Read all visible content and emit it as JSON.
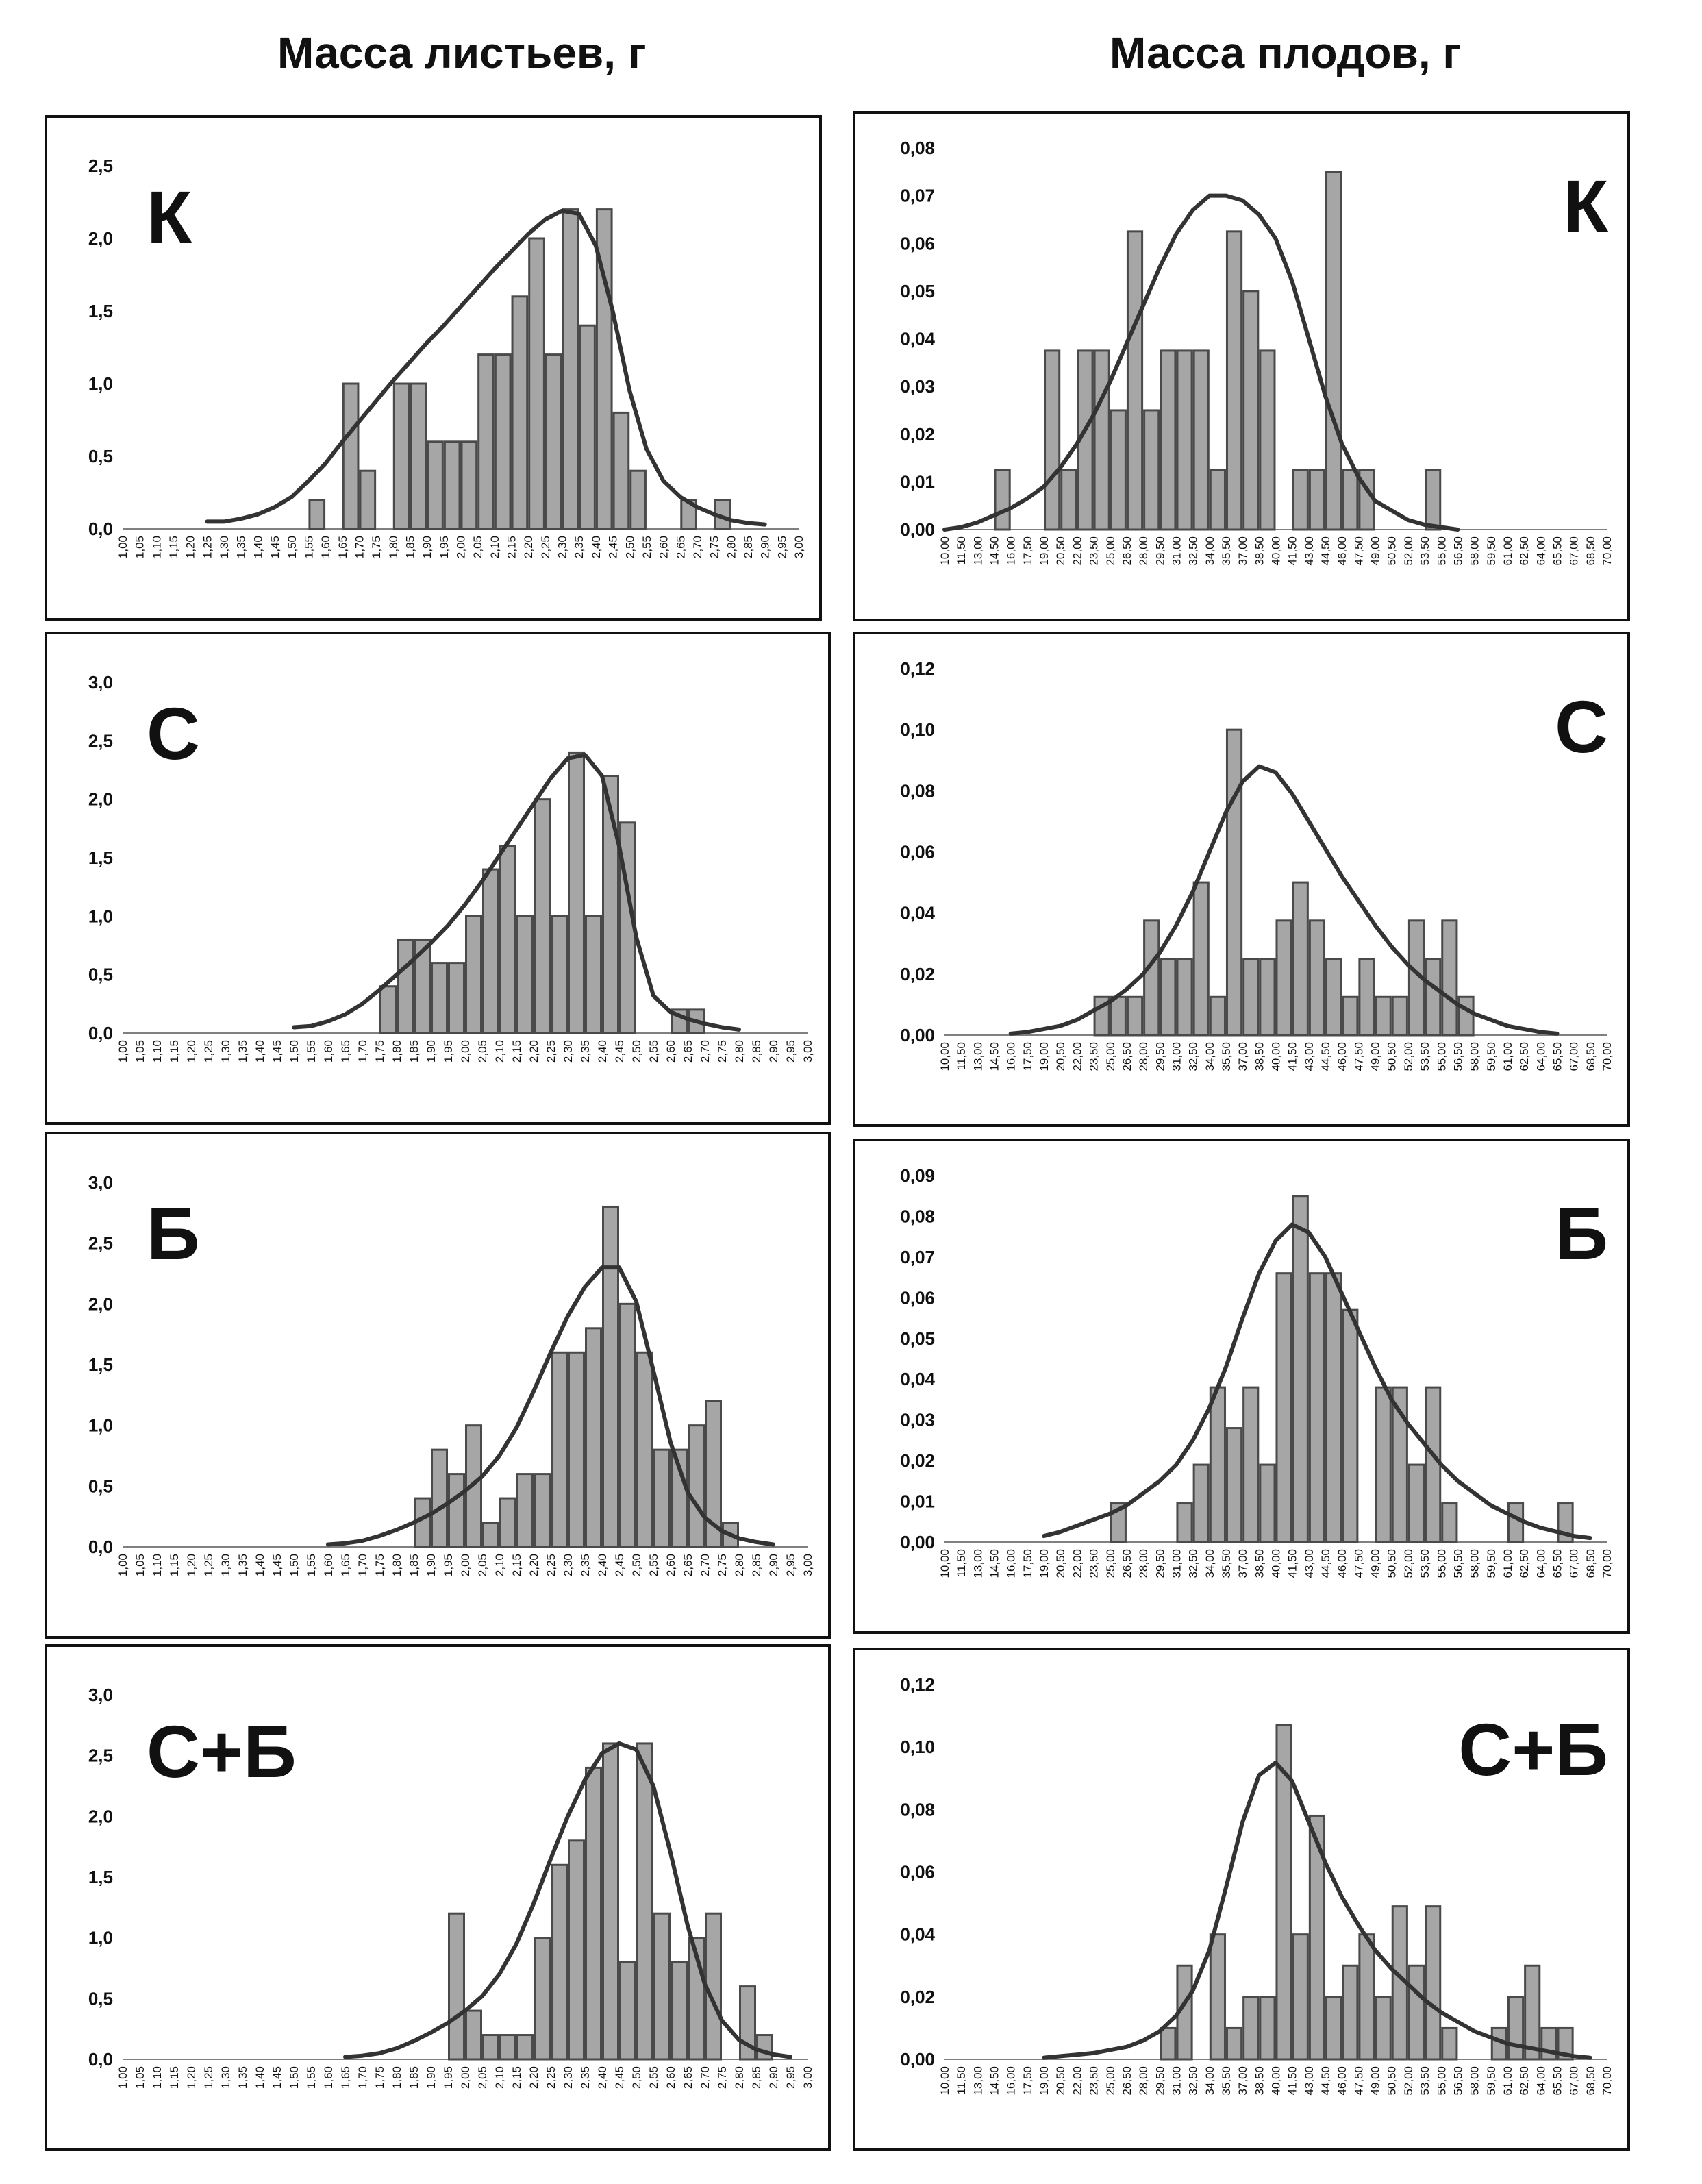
{
  "column_titles": {
    "left": "Масса листьев, г",
    "right": "Масса плодов, г"
  },
  "colors": {
    "bar_fill": "#a6a6a6",
    "bar_stroke": "#4a4a4a",
    "curve": "#333333",
    "axis": "#808080",
    "text": "#111111"
  },
  "chart_data": [
    {
      "id": "leaf-k",
      "type": "bar",
      "label": "К",
      "xticks": [
        "1,00",
        "1,05",
        "1,10",
        "1,15",
        "1,20",
        "1,25",
        "1,30",
        "1,35",
        "1,40",
        "1,45",
        "1,50",
        "1,55",
        "1,60",
        "1,65",
        "1,70",
        "1,75",
        "1,80",
        "1,85",
        "1,90",
        "1,95",
        "2,00",
        "2,05",
        "2,10",
        "2,15",
        "2,20",
        "2,25",
        "2,30",
        "2,35",
        "2,40",
        "2,45",
        "2,50",
        "2,55",
        "2,60",
        "2,65",
        "2,70",
        "2,75",
        "2,80",
        "2,85",
        "2,90",
        "2,95",
        "3,00"
      ],
      "yticks": [
        "0,0",
        "0,5",
        "1,0",
        "1,5",
        "2,0",
        "2,5"
      ],
      "ylim": [
        0,
        2.5
      ],
      "values": [
        0,
        0,
        0,
        0,
        0,
        0,
        0,
        0,
        0,
        0,
        0,
        0.2,
        0,
        1.0,
        0.4,
        0,
        1.0,
        1.0,
        0.6,
        0.6,
        0.6,
        1.2,
        1.2,
        1.6,
        2.0,
        1.2,
        2.2,
        1.4,
        2.2,
        0.8,
        0.4,
        0,
        0,
        0.2,
        0,
        0.2,
        0,
        0,
        0,
        0
      ],
      "curve_x": [
        1.25,
        1.3,
        1.35,
        1.4,
        1.45,
        1.5,
        1.55,
        1.6,
        1.65,
        1.7,
        1.75,
        1.8,
        1.85,
        1.9,
        1.95,
        2.0,
        2.05,
        2.1,
        2.15,
        2.2,
        2.25,
        2.3,
        2.35,
        2.4,
        2.45,
        2.5,
        2.55,
        2.6,
        2.65,
        2.7,
        2.75,
        2.8,
        2.85,
        2.9
      ],
      "curve_y": [
        0.05,
        0.05,
        0.07,
        0.1,
        0.15,
        0.22,
        0.33,
        0.45,
        0.6,
        0.74,
        0.88,
        1.02,
        1.15,
        1.28,
        1.4,
        1.53,
        1.66,
        1.79,
        1.91,
        2.03,
        2.13,
        2.19,
        2.17,
        1.95,
        1.5,
        0.95,
        0.55,
        0.33,
        0.22,
        0.15,
        0.1,
        0.06,
        0.04,
        0.03
      ]
    },
    {
      "id": "leaf-c",
      "type": "bar",
      "label": "С",
      "xticks": [
        "1,00",
        "1,05",
        "1,10",
        "1,15",
        "1,20",
        "1,25",
        "1,30",
        "1,35",
        "1,40",
        "1,45",
        "1,50",
        "1,55",
        "1,60",
        "1,65",
        "1,70",
        "1,75",
        "1,80",
        "1,85",
        "1,90",
        "1,95",
        "2,00",
        "2,05",
        "2,10",
        "2,15",
        "2,20",
        "2,25",
        "2,30",
        "2,35",
        "2,40",
        "2,45",
        "2,50",
        "2,55",
        "2,60",
        "2,65",
        "2,70",
        "2,75",
        "2,80",
        "2,85",
        "2,90",
        "2,95",
        "3,00"
      ],
      "yticks": [
        "0,0",
        "0,5",
        "1,0",
        "1,5",
        "2,0",
        "2,5",
        "3,0"
      ],
      "ylim": [
        0,
        3.0
      ],
      "values": [
        0,
        0,
        0,
        0,
        0,
        0,
        0,
        0,
        0,
        0,
        0,
        0,
        0,
        0,
        0,
        0.4,
        0.8,
        0.8,
        0.6,
        0.6,
        1.0,
        1.4,
        1.6,
        1.0,
        2.0,
        1.0,
        2.4,
        1.0,
        2.2,
        1.8,
        0,
        0,
        0.2,
        0.2,
        0,
        0,
        0,
        0,
        0,
        0
      ],
      "curve_x": [
        1.5,
        1.55,
        1.6,
        1.65,
        1.7,
        1.75,
        1.8,
        1.85,
        1.9,
        1.95,
        2.0,
        2.05,
        2.1,
        2.15,
        2.2,
        2.25,
        2.3,
        2.35,
        2.4,
        2.45,
        2.5,
        2.55,
        2.6,
        2.65,
        2.7,
        2.75,
        2.8
      ],
      "curve_y": [
        0.05,
        0.06,
        0.1,
        0.16,
        0.25,
        0.37,
        0.5,
        0.63,
        0.77,
        0.92,
        1.1,
        1.3,
        1.52,
        1.74,
        1.96,
        2.18,
        2.35,
        2.38,
        2.2,
        1.6,
        0.82,
        0.32,
        0.18,
        0.12,
        0.08,
        0.05,
        0.03
      ]
    },
    {
      "id": "leaf-b",
      "type": "bar",
      "label": "Б",
      "xticks": [
        "1,00",
        "1,05",
        "1,10",
        "1,15",
        "1,20",
        "1,25",
        "1,30",
        "1,35",
        "1,40",
        "1,45",
        "1,50",
        "1,55",
        "1,60",
        "1,65",
        "1,70",
        "1,75",
        "1,80",
        "1,85",
        "1,90",
        "1,95",
        "2,00",
        "2,05",
        "2,10",
        "2,15",
        "2,20",
        "2,25",
        "2,30",
        "2,35",
        "2,40",
        "2,45",
        "2,50",
        "2,55",
        "2,60",
        "2,65",
        "2,70",
        "2,75",
        "2,80",
        "2,85",
        "2,90",
        "2,95",
        "3,00"
      ],
      "yticks": [
        "0,0",
        "0,5",
        "1,0",
        "1,5",
        "2,0",
        "2,5",
        "3,0"
      ],
      "ylim": [
        0,
        3.0
      ],
      "values": [
        0,
        0,
        0,
        0,
        0,
        0,
        0,
        0,
        0,
        0,
        0,
        0,
        0,
        0,
        0,
        0,
        0,
        0.4,
        0.8,
        0.6,
        1.0,
        0.2,
        0.4,
        0.6,
        0.6,
        1.6,
        1.6,
        1.8,
        2.8,
        2.0,
        1.6,
        0.8,
        0.8,
        1.0,
        1.2,
        0.2,
        0,
        0,
        0,
        0
      ],
      "curve_x": [
        1.6,
        1.65,
        1.7,
        1.75,
        1.8,
        1.85,
        1.9,
        1.95,
        2.0,
        2.05,
        2.1,
        2.15,
        2.2,
        2.25,
        2.3,
        2.35,
        2.4,
        2.45,
        2.5,
        2.55,
        2.6,
        2.65,
        2.7,
        2.75,
        2.8,
        2.85,
        2.9
      ],
      "curve_y": [
        0.02,
        0.03,
        0.05,
        0.09,
        0.14,
        0.2,
        0.27,
        0.36,
        0.46,
        0.58,
        0.75,
        0.98,
        1.28,
        1.6,
        1.9,
        2.14,
        2.3,
        2.3,
        2.02,
        1.45,
        0.86,
        0.45,
        0.24,
        0.13,
        0.07,
        0.04,
        0.02
      ]
    },
    {
      "id": "leaf-cb",
      "type": "bar",
      "label": "С+Б",
      "xticks": [
        "1,00",
        "1,05",
        "1,10",
        "1,15",
        "1,20",
        "1,25",
        "1,30",
        "1,35",
        "1,40",
        "1,45",
        "1,50",
        "1,55",
        "1,60",
        "1,65",
        "1,70",
        "1,75",
        "1,80",
        "1,85",
        "1,90",
        "1,95",
        "2,00",
        "2,05",
        "2,10",
        "2,15",
        "2,20",
        "2,25",
        "2,30",
        "2,35",
        "2,40",
        "2,45",
        "2,50",
        "2,55",
        "2,60",
        "2,65",
        "2,70",
        "2,75",
        "2,80",
        "2,85",
        "2,90",
        "2,95",
        "3,00"
      ],
      "yticks": [
        "0,0",
        "0,5",
        "1,0",
        "1,5",
        "2,0",
        "2,5",
        "3,0"
      ],
      "ylim": [
        0,
        3.0
      ],
      "values": [
        0,
        0,
        0,
        0,
        0,
        0,
        0,
        0,
        0,
        0,
        0,
        0,
        0,
        0,
        0,
        0,
        0,
        0,
        0,
        1.2,
        0.4,
        0.2,
        0.2,
        0.2,
        1.0,
        1.6,
        1.8,
        2.4,
        2.6,
        0.8,
        2.6,
        1.2,
        0.8,
        1.0,
        1.2,
        0,
        0.6,
        0.2,
        0,
        0
      ],
      "curve_x": [
        1.65,
        1.7,
        1.75,
        1.8,
        1.85,
        1.9,
        1.95,
        2.0,
        2.05,
        2.1,
        2.15,
        2.2,
        2.25,
        2.3,
        2.35,
        2.4,
        2.45,
        2.5,
        2.55,
        2.6,
        2.65,
        2.7,
        2.75,
        2.8,
        2.85,
        2.9,
        2.95
      ],
      "curve_y": [
        0.02,
        0.03,
        0.05,
        0.09,
        0.15,
        0.22,
        0.3,
        0.4,
        0.52,
        0.7,
        0.95,
        1.28,
        1.65,
        2.0,
        2.3,
        2.52,
        2.6,
        2.55,
        2.25,
        1.7,
        1.1,
        0.62,
        0.32,
        0.16,
        0.08,
        0.04,
        0.02
      ]
    },
    {
      "id": "fruit-k",
      "type": "bar",
      "label": "К",
      "xticks": [
        "10,00",
        "11,50",
        "13,00",
        "14,50",
        "16,00",
        "17,50",
        "19,00",
        "20,50",
        "22,00",
        "23,50",
        "25,00",
        "26,50",
        "28,00",
        "29,50",
        "31,00",
        "32,50",
        "34,00",
        "35,50",
        "37,00",
        "38,50",
        "40,00",
        "41,50",
        "43,00",
        "44,50",
        "46,00",
        "47,50",
        "49,00",
        "50,50",
        "52,00",
        "53,50",
        "55,00",
        "56,50",
        "58,00",
        "59,50",
        "61,00",
        "62,50",
        "64,00",
        "65,50",
        "67,00",
        "68,50",
        "70,00"
      ],
      "yticks": [
        "0,00",
        "0,01",
        "0,02",
        "0,03",
        "0,04",
        "0,05",
        "0,06",
        "0,07",
        "0,08"
      ],
      "ylim": [
        0,
        0.08
      ],
      "values": [
        0,
        0,
        0,
        0.0125,
        0,
        0,
        0.0375,
        0.0125,
        0.0375,
        0.0375,
        0.025,
        0.0625,
        0.025,
        0.0375,
        0.0375,
        0.0375,
        0.0125,
        0.0625,
        0.05,
        0.0375,
        0,
        0.0125,
        0.0125,
        0.075,
        0.0125,
        0.0125,
        0,
        0,
        0,
        0.0125,
        0,
        0,
        0,
        0,
        0,
        0,
        0,
        0,
        0,
        0
      ],
      "curve_x": [
        10,
        11.5,
        13,
        14.5,
        16,
        17.5,
        19,
        20.5,
        22,
        23.5,
        25,
        26.5,
        28,
        29.5,
        31,
        32.5,
        34,
        35.5,
        37,
        38.5,
        40,
        41.5,
        43,
        44.5,
        46,
        47.5,
        49,
        50.5,
        52,
        53.5,
        55,
        56.5
      ],
      "curve_y": [
        0.0,
        0.0005,
        0.0015,
        0.003,
        0.0045,
        0.0065,
        0.009,
        0.013,
        0.018,
        0.024,
        0.031,
        0.039,
        0.047,
        0.055,
        0.062,
        0.067,
        0.07,
        0.07,
        0.069,
        0.066,
        0.061,
        0.052,
        0.04,
        0.028,
        0.018,
        0.011,
        0.006,
        0.004,
        0.002,
        0.001,
        0.0005,
        0.0
      ]
    },
    {
      "id": "fruit-c",
      "type": "bar",
      "label": "С",
      "xticks": [
        "10,00",
        "11,50",
        "13,00",
        "14,50",
        "16,00",
        "17,50",
        "19,00",
        "20,50",
        "22,00",
        "23,50",
        "25,00",
        "26,50",
        "28,00",
        "29,50",
        "31,00",
        "32,50",
        "34,00",
        "35,50",
        "37,00",
        "38,50",
        "40,00",
        "41,50",
        "43,00",
        "44,50",
        "46,00",
        "47,50",
        "49,00",
        "50,50",
        "52,00",
        "53,50",
        "55,00",
        "56,50",
        "58,00",
        "59,50",
        "61,00",
        "62,50",
        "64,00",
        "65,50",
        "67,00",
        "68,50",
        "70,00"
      ],
      "yticks": [
        "0,00",
        "0,02",
        "0,04",
        "0,06",
        "0,08",
        "0,10",
        "0,12"
      ],
      "ylim": [
        0,
        0.12
      ],
      "values": [
        0,
        0,
        0,
        0,
        0,
        0,
        0,
        0,
        0,
        0.0125,
        0.0125,
        0.0125,
        0.0375,
        0.025,
        0.025,
        0.05,
        0.0125,
        0.1,
        0.025,
        0.025,
        0.0375,
        0.05,
        0.0375,
        0.025,
        0.0125,
        0.025,
        0.0125,
        0.0125,
        0.0375,
        0.025,
        0.0375,
        0.0125,
        0,
        0,
        0,
        0,
        0,
        0,
        0,
        0
      ],
      "curve_x": [
        16,
        17.5,
        19,
        20.5,
        22,
        23.5,
        25,
        26.5,
        28,
        29.5,
        31,
        32.5,
        34,
        35.5,
        37,
        38.5,
        40,
        41.5,
        43,
        44.5,
        46,
        47.5,
        49,
        50.5,
        52,
        53.5,
        55,
        56.5,
        58,
        59.5,
        61,
        62.5,
        64,
        65.5
      ],
      "curve_y": [
        0.0005,
        0.001,
        0.002,
        0.003,
        0.005,
        0.008,
        0.011,
        0.015,
        0.02,
        0.027,
        0.036,
        0.047,
        0.06,
        0.073,
        0.083,
        0.088,
        0.086,
        0.079,
        0.07,
        0.061,
        0.052,
        0.044,
        0.036,
        0.029,
        0.023,
        0.018,
        0.014,
        0.01,
        0.007,
        0.005,
        0.003,
        0.002,
        0.001,
        0.0005
      ]
    },
    {
      "id": "fruit-b",
      "type": "bar",
      "label": "Б",
      "xticks": [
        "10,00",
        "11,50",
        "13,00",
        "14,50",
        "16,00",
        "17,50",
        "19,00",
        "20,50",
        "22,00",
        "23,50",
        "25,00",
        "26,50",
        "28,00",
        "29,50",
        "31,00",
        "32,50",
        "34,00",
        "35,50",
        "37,00",
        "38,50",
        "40,00",
        "41,50",
        "43,00",
        "44,50",
        "46,00",
        "47,50",
        "49,00",
        "50,50",
        "52,00",
        "53,50",
        "55,00",
        "56,50",
        "58,00",
        "59,50",
        "61,00",
        "62,50",
        "64,00",
        "65,50",
        "67,00",
        "68,50",
        "70,00"
      ],
      "yticks": [
        "0,00",
        "0,01",
        "0,02",
        "0,03",
        "0,04",
        "0,05",
        "0,06",
        "0,07",
        "0,08",
        "0,09"
      ],
      "ylim": [
        0,
        0.09
      ],
      "values": [
        0,
        0,
        0,
        0,
        0,
        0,
        0,
        0,
        0,
        0,
        0.0095,
        0,
        0,
        0,
        0.0095,
        0.019,
        0.038,
        0.028,
        0.038,
        0.019,
        0.066,
        0.085,
        0.066,
        0.066,
        0.057,
        0,
        0.038,
        0.038,
        0.019,
        0.038,
        0.0095,
        0,
        0,
        0,
        0.0095,
        0,
        0,
        0.0095,
        0,
        0
      ],
      "curve_x": [
        19,
        20.5,
        22,
        23.5,
        25,
        26.5,
        28,
        29.5,
        31,
        32.5,
        34,
        35.5,
        37,
        38.5,
        40,
        41.5,
        43,
        44.5,
        46,
        47.5,
        49,
        50.5,
        52,
        53.5,
        55,
        56.5,
        58,
        59.5,
        61,
        62.5,
        64,
        65.5,
        67,
        68.5
      ],
      "curve_y": [
        0.0015,
        0.0025,
        0.004,
        0.0055,
        0.007,
        0.009,
        0.012,
        0.015,
        0.019,
        0.025,
        0.033,
        0.043,
        0.055,
        0.066,
        0.074,
        0.078,
        0.076,
        0.07,
        0.061,
        0.052,
        0.043,
        0.035,
        0.029,
        0.024,
        0.019,
        0.015,
        0.012,
        0.009,
        0.007,
        0.005,
        0.0035,
        0.0025,
        0.0015,
        0.001
      ]
    },
    {
      "id": "fruit-cb",
      "type": "bar",
      "label": "С+Б",
      "xticks": [
        "10,00",
        "11,50",
        "13,00",
        "14,50",
        "16,00",
        "17,50",
        "19,00",
        "20,50",
        "22,00",
        "23,50",
        "25,00",
        "26,50",
        "28,00",
        "29,50",
        "31,00",
        "32,50",
        "34,00",
        "35,50",
        "37,00",
        "38,50",
        "40,00",
        "41,50",
        "43,00",
        "44,50",
        "46,00",
        "47,50",
        "49,00",
        "50,50",
        "52,00",
        "53,50",
        "55,00",
        "56,50",
        "58,00",
        "59,50",
        "61,00",
        "62,50",
        "64,00",
        "65,50",
        "67,00",
        "68,50",
        "70,00"
      ],
      "yticks": [
        "0,00",
        "0,02",
        "0,04",
        "0,06",
        "0,08",
        "0,10",
        "0,12"
      ],
      "ylim": [
        0,
        0.12
      ],
      "values": [
        0,
        0,
        0,
        0,
        0,
        0,
        0,
        0,
        0,
        0,
        0,
        0,
        0,
        0.01,
        0.03,
        0,
        0.04,
        0.01,
        0.02,
        0.02,
        0.107,
        0.04,
        0.078,
        0.02,
        0.03,
        0.04,
        0.02,
        0.049,
        0.03,
        0.049,
        0.01,
        0,
        0,
        0.01,
        0.02,
        0.03,
        0.01,
        0.01,
        0,
        0
      ],
      "curve_x": [
        19,
        20.5,
        22,
        23.5,
        25,
        26.5,
        28,
        29.5,
        31,
        32.5,
        34,
        35.5,
        37,
        38.5,
        40,
        41.5,
        43,
        44.5,
        46,
        47.5,
        49,
        50.5,
        52,
        53.5,
        55,
        56.5,
        58,
        59.5,
        61,
        62.5,
        64,
        65.5,
        67,
        68.5
      ],
      "curve_y": [
        0.0005,
        0.001,
        0.0015,
        0.002,
        0.003,
        0.004,
        0.006,
        0.009,
        0.014,
        0.022,
        0.035,
        0.055,
        0.076,
        0.091,
        0.095,
        0.089,
        0.076,
        0.063,
        0.052,
        0.043,
        0.035,
        0.029,
        0.024,
        0.019,
        0.015,
        0.012,
        0.009,
        0.007,
        0.005,
        0.004,
        0.003,
        0.002,
        0.001,
        0.0005
      ]
    }
  ]
}
